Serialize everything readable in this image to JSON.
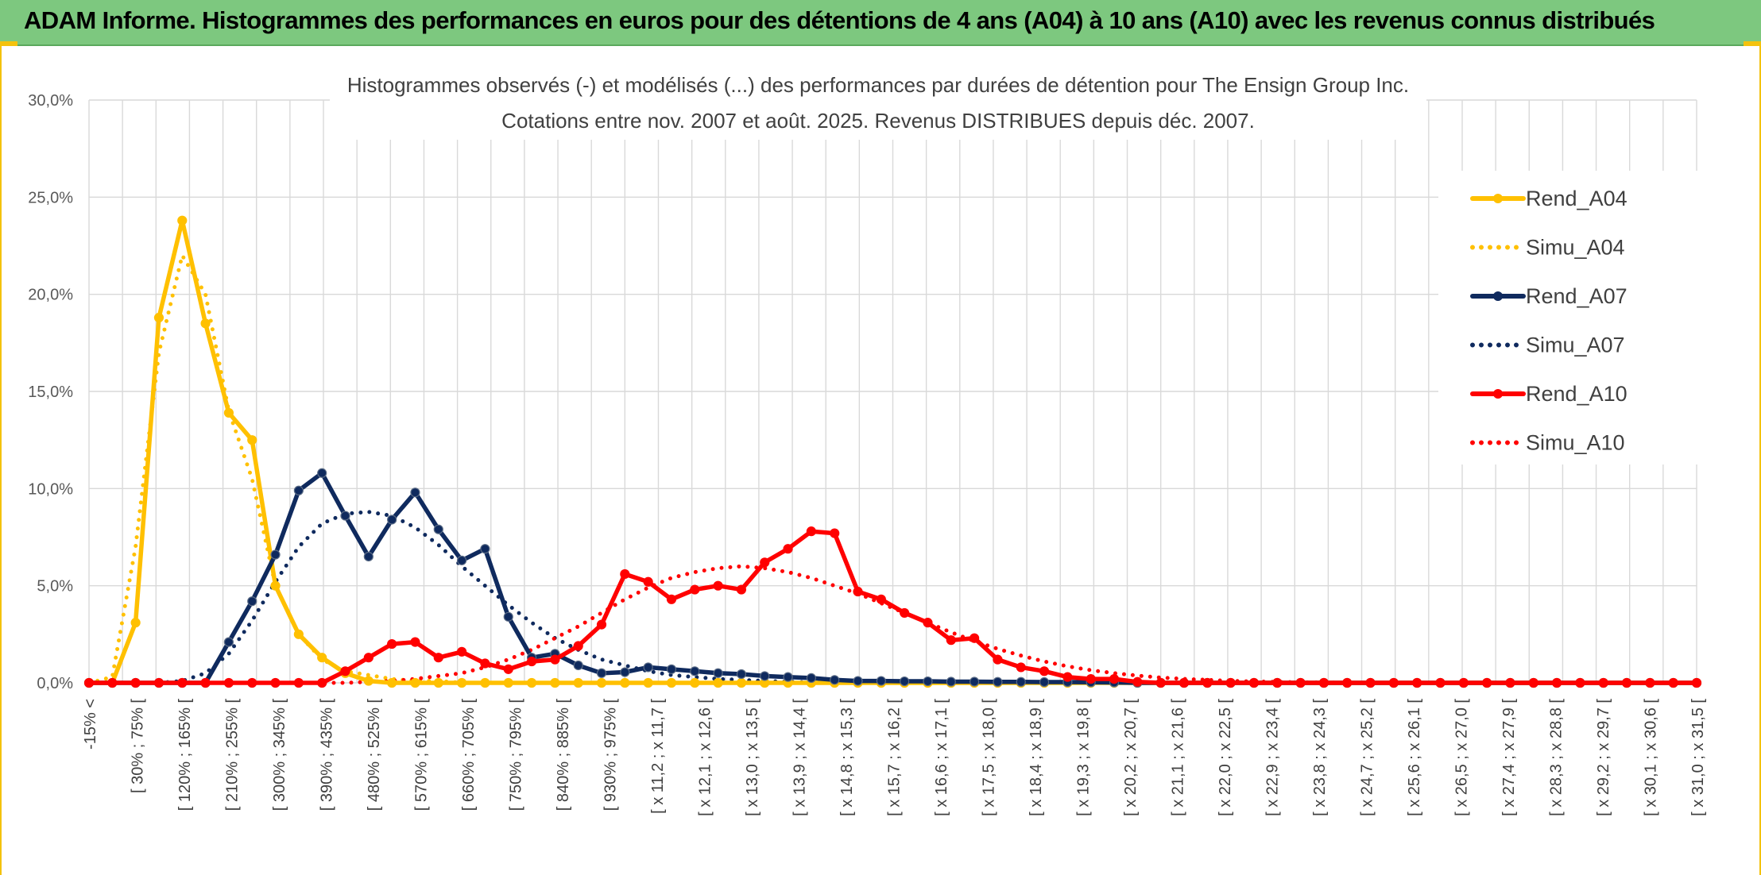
{
  "banner": {
    "title": "ADAM Informe. Histogrammes des performances en euros pour des détentions de 4 ans (A04) à 10 ans (A10) avec les revenus connus distribués"
  },
  "colors": {
    "banner_bg": "#7dc87f",
    "A04": "#FFC000",
    "A07": "#0F2A5E",
    "A10": "#FF0000",
    "grid": "#D9D9D9"
  },
  "chart_data": {
    "type": "line",
    "title": "Histogrammes observés (-) et modélisés (...) des performances par durées de détention pour The Ensign Group Inc.",
    "subtitle": "Cotations entre nov. 2007 et août. 2025. Revenus DISTRIBUES depuis déc. 2007.",
    "xlabel": "",
    "ylabel": "",
    "ylim": [
      0,
      30
    ],
    "y_ticks": [
      "0,0%",
      "5,0%",
      "10,0%",
      "15,0%",
      "20,0%",
      "25,0%",
      "30,0%"
    ],
    "grid": true,
    "legend_position": "right",
    "x_tick_labels": [
      "-15% <",
      "[ 30% ; 75% [",
      "[ 120% ; 165% [",
      "[ 210% ; 255% [",
      "[ 300% ; 345% [",
      "[ 390% ; 435% [",
      "[ 480% ; 525% [",
      "[ 570% ; 615% [",
      "[ 660% ; 705% [",
      "[ 750% ; 795% [",
      "[ 840% ; 885% [",
      "[ 930% ; 975% [",
      "[ x 11,2 ; x 11,7 [",
      "[ x 12,1 ; x 12,6 [",
      "[ x 13,0 ; x 13,5 [",
      "[ x 13,9 ; x 14,4 [",
      "[ x 14,8 ; x 15,3 [",
      "[ x 15,7 ; x 16,2 [",
      "[ x 16,6 ; x 17,1 [",
      "[ x 17,5 ; x 18,0 [",
      "[ x 18,4 ; x 18,9 [",
      "[ x 19,3 ; x 19,8 [",
      "[ x 20,2 ; x 20,7 [",
      "[ x 21,1 ; x 21,6 [",
      "[ x 22,0 ; x 22,5 [",
      "[ x 22,9 ; x 23,4 [",
      "[ x 23,8 ; x 24,3 [",
      "[ x 24,7 ; x 25,2 [",
      "[ x 25,6 ; x 26,1 [",
      "[ x 26,5 ; x 27,0 [",
      "[ x 27,4 ; x 27,9 [",
      "[ x 28,3 ; x 28,8 [",
      "[ x 29,2 ; x 29,7 [",
      "[ x 30,1 ; x 30,6 [",
      "[ x 31,0 ; x 31,5 ["
    ],
    "series": [
      {
        "name": "Rend_A04",
        "style": "solid",
        "color": "#FFC000",
        "values": [
          0,
          0,
          3.1,
          18.8,
          23.8,
          18.5,
          13.9,
          12.5,
          5,
          2.5,
          1.3,
          0.5,
          0.1,
          0,
          0,
          0,
          0,
          0,
          0,
          0,
          0,
          0,
          0,
          0,
          0,
          0,
          0,
          0,
          0,
          0,
          0,
          0,
          0,
          0,
          0,
          0,
          0,
          0,
          0,
          0,
          0,
          0,
          0,
          0,
          0,
          0,
          0,
          0,
          0,
          0,
          0,
          0,
          0,
          0,
          0,
          0,
          0,
          0,
          0,
          0,
          0,
          0,
          0,
          0,
          0,
          0,
          0,
          0,
          0,
          0
        ]
      },
      {
        "name": "Simu_A04",
        "style": "dotted",
        "color": "#FFC000",
        "values": [
          0,
          0.3,
          7,
          17,
          22,
          20,
          14,
          10.5,
          5,
          2.5,
          1.2,
          0.6,
          0.4,
          0.2,
          0.1,
          0.1,
          0,
          0,
          0,
          0,
          0,
          0,
          0,
          0,
          0,
          0,
          0,
          0,
          0,
          0,
          0,
          0,
          0,
          0,
          0,
          0,
          0,
          0,
          0,
          0,
          0,
          0,
          0,
          0,
          0,
          0,
          0,
          0,
          0,
          0,
          0,
          0,
          0,
          0,
          0,
          0,
          0,
          0,
          0,
          0,
          0,
          0,
          0,
          0,
          0,
          0,
          0,
          0,
          0,
          0
        ]
      },
      {
        "name": "Rend_A07",
        "style": "solid",
        "color": "#0F2A5E",
        "values": [
          0,
          0,
          0,
          0,
          0,
          0,
          2.1,
          4.2,
          6.6,
          9.9,
          10.8,
          8.6,
          6.5,
          8.4,
          9.8,
          7.9,
          6.3,
          6.9,
          3.4,
          1.3,
          1.5,
          0.9,
          0.5,
          0.55,
          0.8,
          0.7,
          0.6,
          0.5,
          0.45,
          0.35,
          0.3,
          0.25,
          0.15,
          0.1,
          0.1,
          0.08,
          0.08,
          0.06,
          0.06,
          0.05,
          0.05,
          0.04,
          0.04,
          0.03,
          0.02,
          0,
          0,
          0,
          0,
          0,
          0,
          0,
          0,
          0,
          0,
          0,
          0,
          0,
          0,
          0,
          0,
          0,
          0,
          0,
          0,
          0,
          0,
          0,
          0,
          0
        ]
      },
      {
        "name": "Simu_A07",
        "style": "dotted",
        "color": "#0F2A5E",
        "values": [
          0,
          0,
          0,
          0,
          0.1,
          0.5,
          1.5,
          3.2,
          5.2,
          7,
          8.2,
          8.7,
          8.8,
          8.6,
          8,
          7.1,
          6,
          5,
          4,
          3.1,
          2.3,
          1.7,
          1.2,
          0.9,
          0.6,
          0.4,
          0.3,
          0.2,
          0.15,
          0.1,
          0.05,
          0.03,
          0.02,
          0.01,
          0,
          0,
          0,
          0,
          0,
          0,
          0,
          0,
          0,
          0,
          0,
          0,
          0,
          0,
          0,
          0,
          0,
          0,
          0,
          0,
          0,
          0,
          0,
          0,
          0,
          0,
          0,
          0,
          0,
          0,
          0,
          0,
          0,
          0,
          0,
          0
        ]
      },
      {
        "name": "Rend_A10",
        "style": "solid",
        "color": "#FF0000",
        "values": [
          0,
          0,
          0,
          0,
          0,
          0,
          0,
          0,
          0,
          0,
          0,
          0.6,
          1.3,
          2.0,
          2.1,
          1.3,
          1.6,
          1,
          0.7,
          1.1,
          1.2,
          1.9,
          3.0,
          5.6,
          5.2,
          4.3,
          4.8,
          5,
          4.8,
          6.2,
          6.9,
          7.8,
          7.7,
          4.7,
          4.3,
          3.6,
          3.1,
          2.2,
          2.3,
          1.2,
          0.8,
          0.6,
          0.3,
          0.2,
          0.2,
          0.05,
          0,
          0,
          0,
          0,
          0,
          0,
          0,
          0,
          0,
          0,
          0,
          0,
          0,
          0,
          0,
          0,
          0,
          0,
          0,
          0,
          0,
          0,
          0,
          0
        ]
      },
      {
        "name": "Simu_A10",
        "style": "dotted",
        "color": "#FF0000",
        "values": [
          0,
          0,
          0,
          0,
          0,
          0,
          0,
          0,
          0,
          0,
          0,
          0,
          0.05,
          0.1,
          0.2,
          0.35,
          0.5,
          0.8,
          1.2,
          1.7,
          2.3,
          2.9,
          3.6,
          4.3,
          4.9,
          5.4,
          5.7,
          5.9,
          6.0,
          5.9,
          5.7,
          5.4,
          5.0,
          4.6,
          4.1,
          3.6,
          3.1,
          2.6,
          2.15,
          1.75,
          1.4,
          1.1,
          0.85,
          0.65,
          0.5,
          0.37,
          0.27,
          0.2,
          0.15,
          0.1,
          0.07,
          0.05,
          0.03,
          0.02,
          0.01,
          0,
          0,
          0,
          0,
          0,
          0,
          0,
          0,
          0,
          0,
          0,
          0,
          0,
          0,
          0
        ]
      }
    ]
  }
}
